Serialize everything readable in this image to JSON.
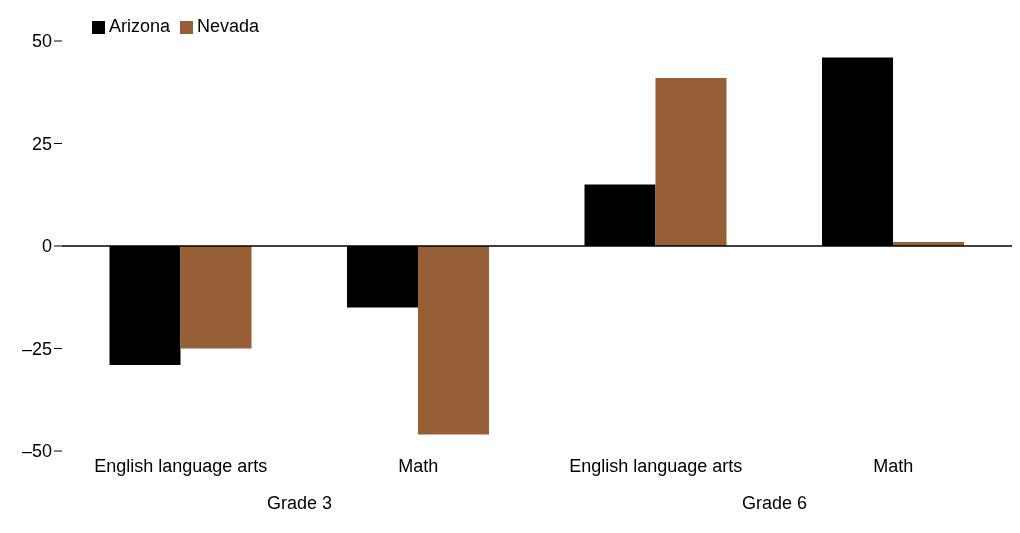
{
  "chart_data": {
    "type": "bar",
    "categories": [
      "English language arts",
      "Math",
      "English language arts",
      "Math"
    ],
    "series": [
      {
        "name": "Arizona",
        "color": "#000000",
        "values": [
          -29,
          -15,
          15,
          46
        ]
      },
      {
        "name": "Nevada",
        "color": "#965f35",
        "values": [
          -25,
          -46,
          41,
          1
        ]
      }
    ],
    "ylim": [
      -50,
      50
    ],
    "yticks": [
      {
        "value": -50,
        "label": "–50"
      },
      {
        "value": -25,
        "label": "–25"
      },
      0,
      25,
      50
    ],
    "annotations": [
      "Grade 3",
      "Grade 6"
    ],
    "ref_lines": [
      {
        "axis": "y",
        "value": 0,
        "color": "#000000"
      }
    ],
    "legend": "top left"
  }
}
